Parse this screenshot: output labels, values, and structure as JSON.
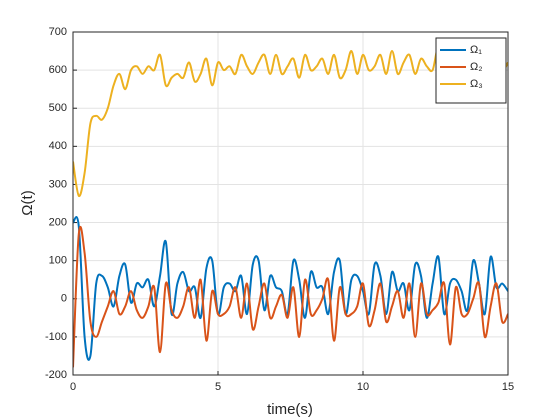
{
  "chart_data": {
    "type": "line",
    "xlabel": "time(s)",
    "ylabel": "Ω(t)",
    "x": [
      0,
      0.2,
      0.4,
      0.6,
      0.8,
      1,
      1.2,
      1.4,
      1.6,
      1.8,
      2,
      2.2,
      2.4,
      2.6,
      2.8,
      3,
      3.2,
      3.4,
      3.6,
      3.8,
      4,
      4.2,
      4.4,
      4.6,
      4.8,
      5,
      5.2,
      5.4,
      5.6,
      5.8,
      6,
      6.2,
      6.4,
      6.6,
      6.8,
      7,
      7.2,
      7.4,
      7.6,
      7.8,
      8,
      8.2,
      8.4,
      8.6,
      8.8,
      9,
      9.2,
      9.4,
      9.6,
      9.8,
      10,
      10.2,
      10.4,
      10.6,
      10.8,
      11,
      11.2,
      11.4,
      11.6,
      11.8,
      12,
      12.2,
      12.4,
      12.6,
      12.8,
      13,
      13.2,
      13.4,
      13.6,
      13.8,
      14,
      14.2,
      14.4,
      14.6,
      14.8,
      15
    ],
    "series": [
      {
        "name": "Ω₁",
        "color": "#0072bd",
        "values": [
          200,
          190,
          -100,
          -150,
          40,
          60,
          30,
          -20,
          60,
          90,
          -10,
          40,
          30,
          50,
          -20,
          60,
          150,
          -40,
          40,
          70,
          20,
          30,
          -50,
          80,
          100,
          -40,
          30,
          40,
          20,
          60,
          -40,
          90,
          100,
          -30,
          60,
          30,
          20,
          -40,
          100,
          50,
          -50,
          70,
          30,
          30,
          -40,
          70,
          100,
          -40,
          50,
          60,
          20,
          -40,
          90,
          60,
          -40,
          70,
          20,
          40,
          -30,
          90,
          60,
          -50,
          40,
          110,
          -40,
          40,
          50,
          20,
          -30,
          100,
          40,
          -40,
          110,
          30,
          40,
          20
        ]
      },
      {
        "name": "Ω₂",
        "color": "#d95319",
        "values": [
          -180,
          170,
          120,
          -60,
          -100,
          -60,
          -20,
          20,
          -40,
          -20,
          20,
          -30,
          -50,
          -20,
          30,
          -140,
          40,
          -30,
          -50,
          -20,
          30,
          -50,
          50,
          -110,
          20,
          -40,
          -40,
          -20,
          30,
          -50,
          40,
          -80,
          -20,
          40,
          -50,
          -20,
          10,
          -50,
          30,
          -100,
          50,
          -40,
          -30,
          0,
          50,
          -110,
          30,
          -40,
          -40,
          -20,
          40,
          -70,
          -30,
          40,
          -60,
          -20,
          20,
          -50,
          40,
          -100,
          40,
          -40,
          -30,
          -10,
          40,
          -120,
          30,
          -40,
          -40,
          0,
          40,
          -100,
          -20,
          40,
          -60,
          -40
        ]
      },
      {
        "name": "Ω₃",
        "color": "#edb120",
        "values": [
          360,
          270,
          330,
          460,
          480,
          470,
          500,
          560,
          590,
          550,
          600,
          610,
          590,
          610,
          600,
          640,
          560,
          580,
          590,
          580,
          620,
          570,
          590,
          630,
          560,
          620,
          600,
          610,
          590,
          640,
          610,
          590,
          620,
          640,
          590,
          640,
          590,
          610,
          630,
          580,
          640,
          600,
          610,
          630,
          590,
          640,
          580,
          600,
          650,
          590,
          640,
          600,
          610,
          640,
          590,
          650,
          590,
          620,
          640,
          590,
          630,
          610,
          600,
          660,
          590,
          640,
          580,
          610,
          650,
          590,
          640,
          590,
          620,
          650,
          600,
          620
        ]
      }
    ],
    "xlim": [
      0,
      15
    ],
    "xticks": [
      0,
      5,
      10,
      15
    ],
    "ylim": [
      -200,
      700
    ],
    "yticks": [
      -200,
      -100,
      0,
      100,
      200,
      300,
      400,
      500,
      600,
      700
    ],
    "grid": true,
    "legend": "northeast"
  }
}
